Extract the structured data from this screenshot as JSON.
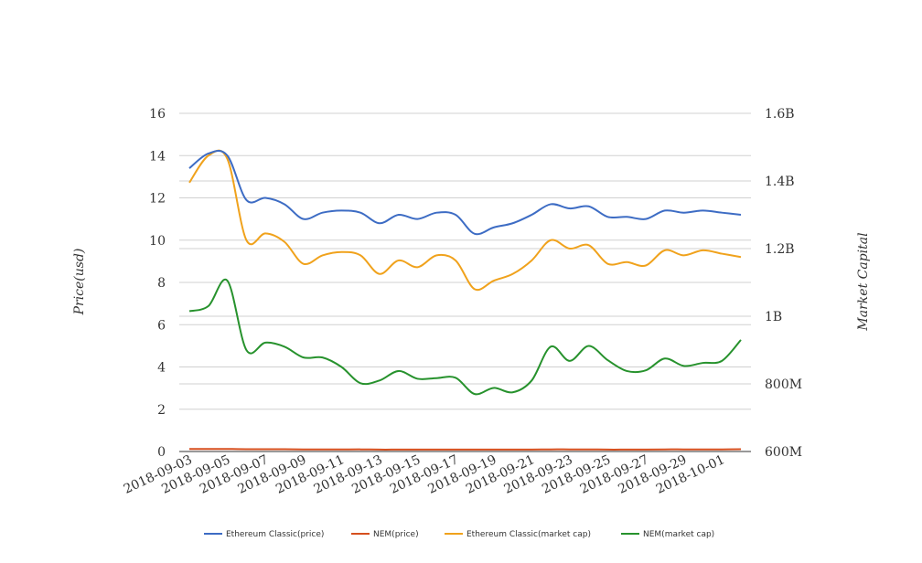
{
  "chart_data": {
    "type": "line",
    "title": "",
    "x": [
      "2018-09-03",
      "2018-09-04",
      "2018-09-05",
      "2018-09-06",
      "2018-09-07",
      "2018-09-08",
      "2018-09-09",
      "2018-09-10",
      "2018-09-11",
      "2018-09-12",
      "2018-09-13",
      "2018-09-14",
      "2018-09-15",
      "2018-09-16",
      "2018-09-17",
      "2018-09-18",
      "2018-09-19",
      "2018-09-20",
      "2018-09-21",
      "2018-09-22",
      "2018-09-23",
      "2018-09-24",
      "2018-09-25",
      "2018-09-26",
      "2018-09-27",
      "2018-09-28",
      "2018-09-29",
      "2018-09-30",
      "2018-10-01",
      "2018-10-02"
    ],
    "x_tick_labels": [
      "2018-09-03",
      "2018-09-05",
      "2018-09-07",
      "2018-09-09",
      "2018-09-11",
      "2018-09-13",
      "2018-09-15",
      "2018-09-17",
      "2018-09-19",
      "2018-09-21",
      "2018-09-23",
      "2018-09-25",
      "2018-09-27",
      "2018-09-29",
      "2018-10-01"
    ],
    "y_left": {
      "label": "Price(usd)",
      "range": [
        0,
        16
      ],
      "ticks": [
        "0",
        "2",
        "4",
        "6",
        "8",
        "10",
        "12",
        "14",
        "16"
      ]
    },
    "y_right": {
      "label": "Market Capital",
      "range": [
        600000000,
        1600000000
      ],
      "ticks": [
        "600M",
        "800M",
        "1B",
        "1.2B",
        "1.4B",
        "1.6B"
      ]
    },
    "grid": true,
    "legend_position": "bottom",
    "series": [
      {
        "name": "Ethereum Classic(price)",
        "axis": "left",
        "color": "#3d6cc4",
        "values": [
          13.4,
          14.1,
          14.0,
          11.9,
          12.0,
          11.7,
          11.0,
          11.3,
          11.4,
          11.3,
          10.8,
          11.2,
          11.0,
          11.3,
          11.2,
          10.3,
          10.6,
          10.8,
          11.2,
          11.7,
          11.5,
          11.6,
          11.1,
          11.1,
          11.0,
          11.4,
          11.3,
          11.4,
          11.3,
          11.2
        ]
      },
      {
        "name": "NEM(price)",
        "axis": "left",
        "color": "#d64f1e",
        "values": [
          0.12,
          0.12,
          0.12,
          0.11,
          0.11,
          0.11,
          0.1,
          0.1,
          0.1,
          0.1,
          0.09,
          0.09,
          0.09,
          0.09,
          0.09,
          0.09,
          0.09,
          0.09,
          0.09,
          0.1,
          0.1,
          0.1,
          0.09,
          0.09,
          0.09,
          0.1,
          0.1,
          0.1,
          0.1,
          0.11
        ]
      },
      {
        "name": "Ethereum Classic(market cap)",
        "axis": "right",
        "color": "#f0a21c",
        "values": [
          1395000000,
          1475000000,
          1465000000,
          1225000000,
          1245000000,
          1220000000,
          1155000000,
          1180000000,
          1190000000,
          1180000000,
          1125000000,
          1165000000,
          1145000000,
          1180000000,
          1165000000,
          1080000000,
          1105000000,
          1125000000,
          1165000000,
          1225000000,
          1200000000,
          1210000000,
          1155000000,
          1160000000,
          1150000000,
          1195000000,
          1180000000,
          1195000000,
          1185000000,
          1175000000
        ]
      },
      {
        "name": "NEM(market cap)",
        "axis": "right",
        "color": "#27922d",
        "values": [
          1015000000,
          1030000000,
          1105000000,
          900000000,
          922000000,
          910000000,
          878000000,
          878000000,
          850000000,
          802000000,
          810000000,
          838000000,
          815000000,
          817000000,
          818000000,
          770000000,
          788000000,
          775000000,
          810000000,
          910000000,
          868000000,
          912000000,
          870000000,
          838000000,
          840000000,
          875000000,
          853000000,
          862000000,
          868000000,
          930000000
        ]
      }
    ]
  }
}
